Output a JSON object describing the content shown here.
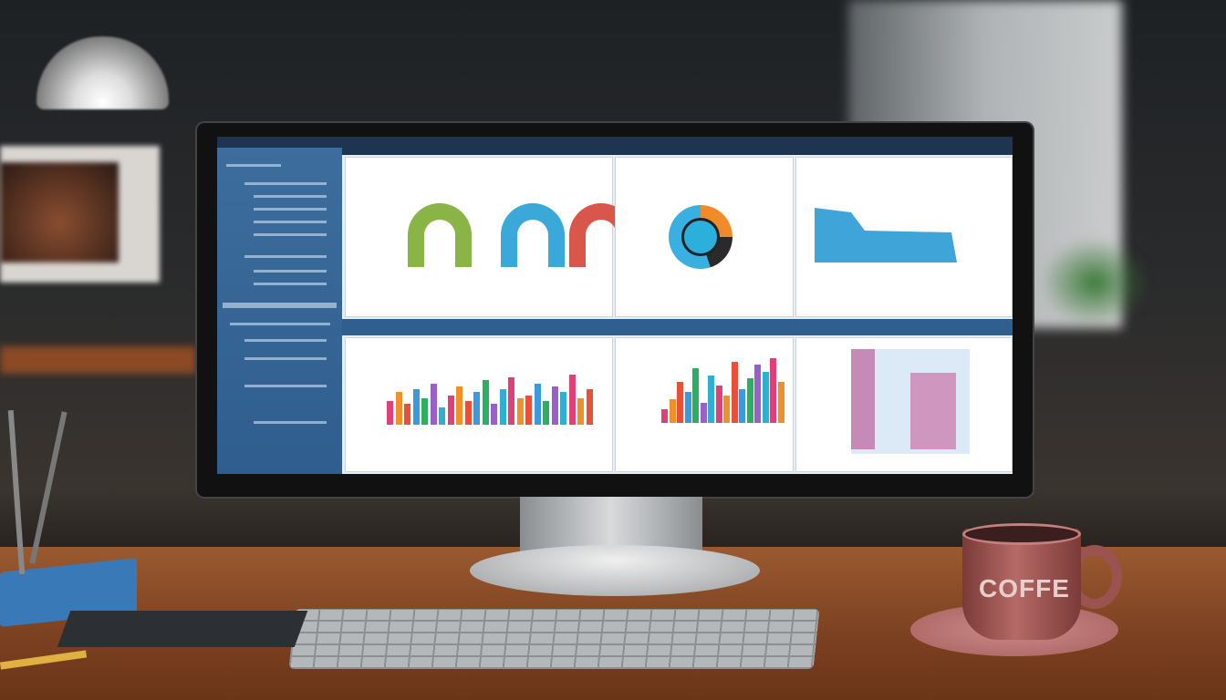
{
  "scene": {
    "mug_text": "COFFE",
    "colors": {
      "screen_blue": "#3d6d9c",
      "desk": "#9a5a30",
      "mug": "#b56a66"
    }
  },
  "dashboard": {
    "gauges": [
      {
        "color": "#8ab446"
      },
      {
        "color": "#3aa8d8"
      },
      {
        "color": "#d9564a"
      }
    ],
    "bar_chart_left": [
      40,
      55,
      35,
      60,
      45,
      70,
      30,
      50,
      65,
      40,
      55,
      75,
      35,
      60,
      80,
      45,
      50,
      70,
      40,
      65,
      55,
      85,
      45,
      60
    ],
    "bar_chart_mid": [
      20,
      35,
      60,
      45,
      80,
      30,
      70,
      55,
      40,
      90,
      50,
      65,
      85,
      75,
      95,
      60
    ],
    "bar_colors": [
      "#e0407a",
      "#f0902a",
      "#e8503a",
      "#3a9ae0",
      "#2ab060",
      "#9a60c8",
      "#30b0d0"
    ]
  }
}
